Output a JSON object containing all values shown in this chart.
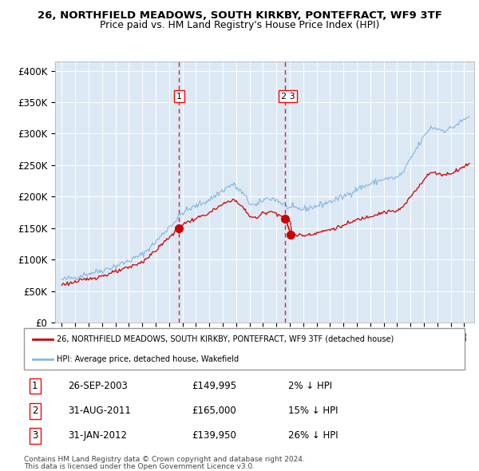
{
  "title_line1": "26, NORTHFIELD MEADOWS, SOUTH KIRKBY, PONTEFRACT, WF9 3TF",
  "title_line2": "Price paid vs. HM Land Registry's House Price Index (HPI)",
  "hpi_label": "HPI: Average price, detached house, Wakefield",
  "property_label": "26, NORTHFIELD MEADOWS, SOUTH KIRKBY, PONTEFRACT, WF9 3TF (detached house)",
  "background_color": "#dce9f5",
  "hpi_color": "#89b8e0",
  "property_color": "#cc0000",
  "vline_color": "#cc0000",
  "yticks": [
    0,
    50000,
    100000,
    150000,
    200000,
    250000,
    300000,
    350000,
    400000
  ],
  "ytick_labels": [
    "£0",
    "£50K",
    "£100K",
    "£150K",
    "£200K",
    "£250K",
    "£300K",
    "£350K",
    "£400K"
  ],
  "transactions": [
    {
      "num": 1,
      "date": "26-SEP-2003",
      "price": 149995,
      "pct": "2%",
      "dir": "↓"
    },
    {
      "num": 2,
      "date": "31-AUG-2011",
      "price": 165000,
      "pct": "15%",
      "dir": "↓"
    },
    {
      "num": 3,
      "date": "31-JAN-2012",
      "price": 139950,
      "pct": "26%",
      "dir": "↓"
    }
  ],
  "transaction_dates_decimal": [
    2003.74,
    2011.67,
    2012.08
  ],
  "transaction_prices": [
    149995,
    165000,
    139950
  ],
  "hpi_control_x": [
    1995.0,
    1996.0,
    1997.0,
    1998.0,
    1999.0,
    2000.0,
    2001.0,
    2002.0,
    2003.0,
    2003.5,
    2004.0,
    2005.0,
    2006.0,
    2007.0,
    2007.75,
    2008.5,
    2009.0,
    2009.5,
    2010.0,
    2010.5,
    2011.0,
    2011.5,
    2012.0,
    2013.0,
    2014.0,
    2015.0,
    2016.0,
    2017.0,
    2018.0,
    2019.0,
    2020.0,
    2020.5,
    2021.0,
    2021.5,
    2022.0,
    2022.5,
    2023.0,
    2023.5,
    2024.0,
    2024.5,
    2025.0,
    2025.4
  ],
  "hpi_control_y": [
    68000,
    72000,
    78000,
    83000,
    90000,
    98000,
    108000,
    128000,
    152000,
    162000,
    175000,
    185000,
    195000,
    210000,
    220000,
    205000,
    190000,
    185000,
    195000,
    198000,
    195000,
    188000,
    182000,
    180000,
    185000,
    192000,
    200000,
    212000,
    220000,
    228000,
    230000,
    240000,
    260000,
    278000,
    295000,
    310000,
    308000,
    305000,
    308000,
    315000,
    322000,
    328000
  ],
  "footnote1": "Contains HM Land Registry data © Crown copyright and database right 2024.",
  "footnote2": "This data is licensed under the Open Government Licence v3.0."
}
